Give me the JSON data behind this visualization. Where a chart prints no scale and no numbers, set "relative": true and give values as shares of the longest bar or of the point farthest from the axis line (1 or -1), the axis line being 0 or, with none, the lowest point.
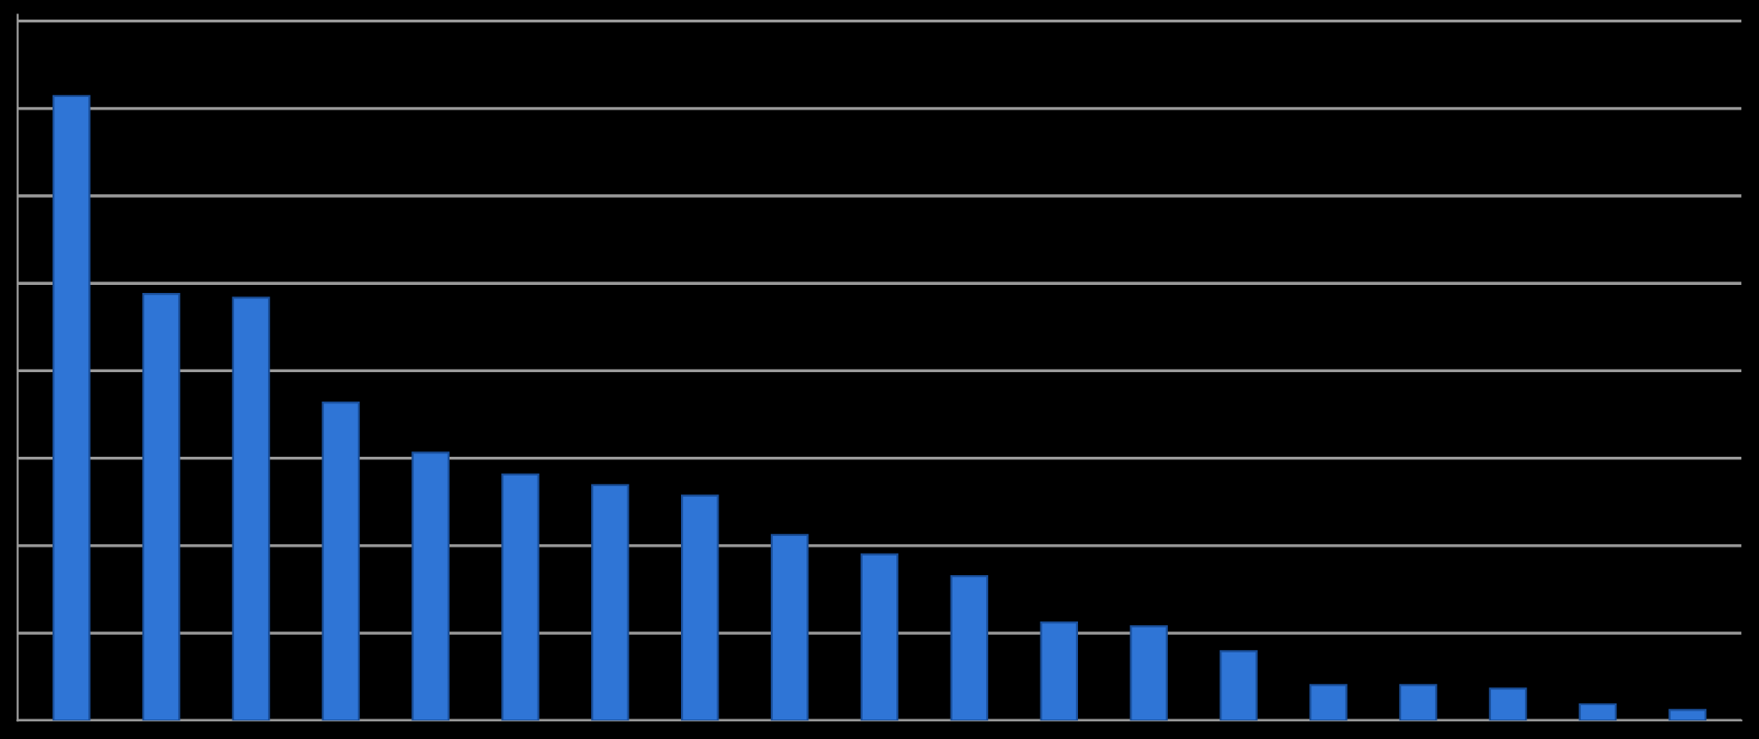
{
  "chart_data": {
    "type": "bar",
    "relative": true,
    "grid": "y",
    "color": "#2f75d6",
    "categories": [
      null,
      null,
      null,
      null,
      null,
      null,
      null,
      null,
      null,
      null,
      null,
      null,
      null,
      null,
      null,
      null,
      null,
      null,
      null
    ],
    "values": [
      1,
      0.683,
      0.677,
      0.509,
      0.429,
      0.394,
      0.377,
      0.36,
      0.297,
      0.266,
      0.231,
      0.157,
      0.151,
      0.111,
      0.057,
      0.057,
      0.051,
      0.026,
      0.017
    ]
  }
}
